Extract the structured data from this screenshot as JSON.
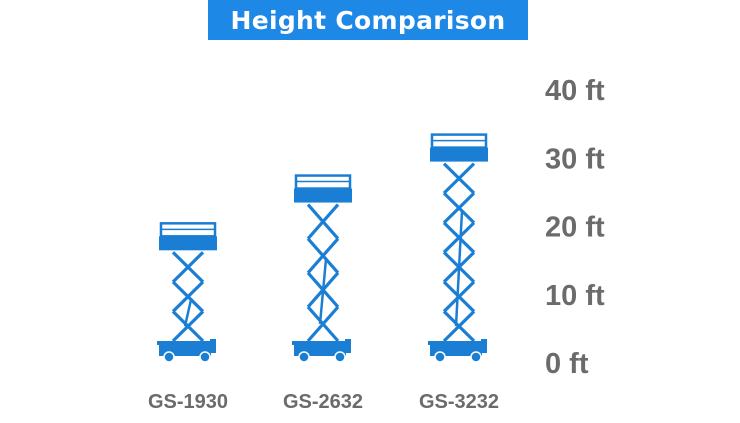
{
  "title": "Height Comparison",
  "chart_data": {
    "type": "bar",
    "title": "Height Comparison",
    "categories": [
      "GS-1930",
      "GS-2632",
      "GS-3232"
    ],
    "values": [
      19,
      26,
      32
    ],
    "ylim": [
      0,
      40
    ],
    "yticks": [
      0,
      10,
      20,
      30,
      40
    ],
    "ytick_labels": [
      "0 ft",
      "10 ft",
      "20 ft",
      "30 ft",
      "40 ft"
    ],
    "unit": "ft",
    "grid": true,
    "colors": {
      "lift": "#1a7fd4",
      "grid": "#c8c8c8",
      "text": "#6b6b6b",
      "title_bg": "#1d88e5"
    },
    "icon": "scissor-lift-icon"
  }
}
